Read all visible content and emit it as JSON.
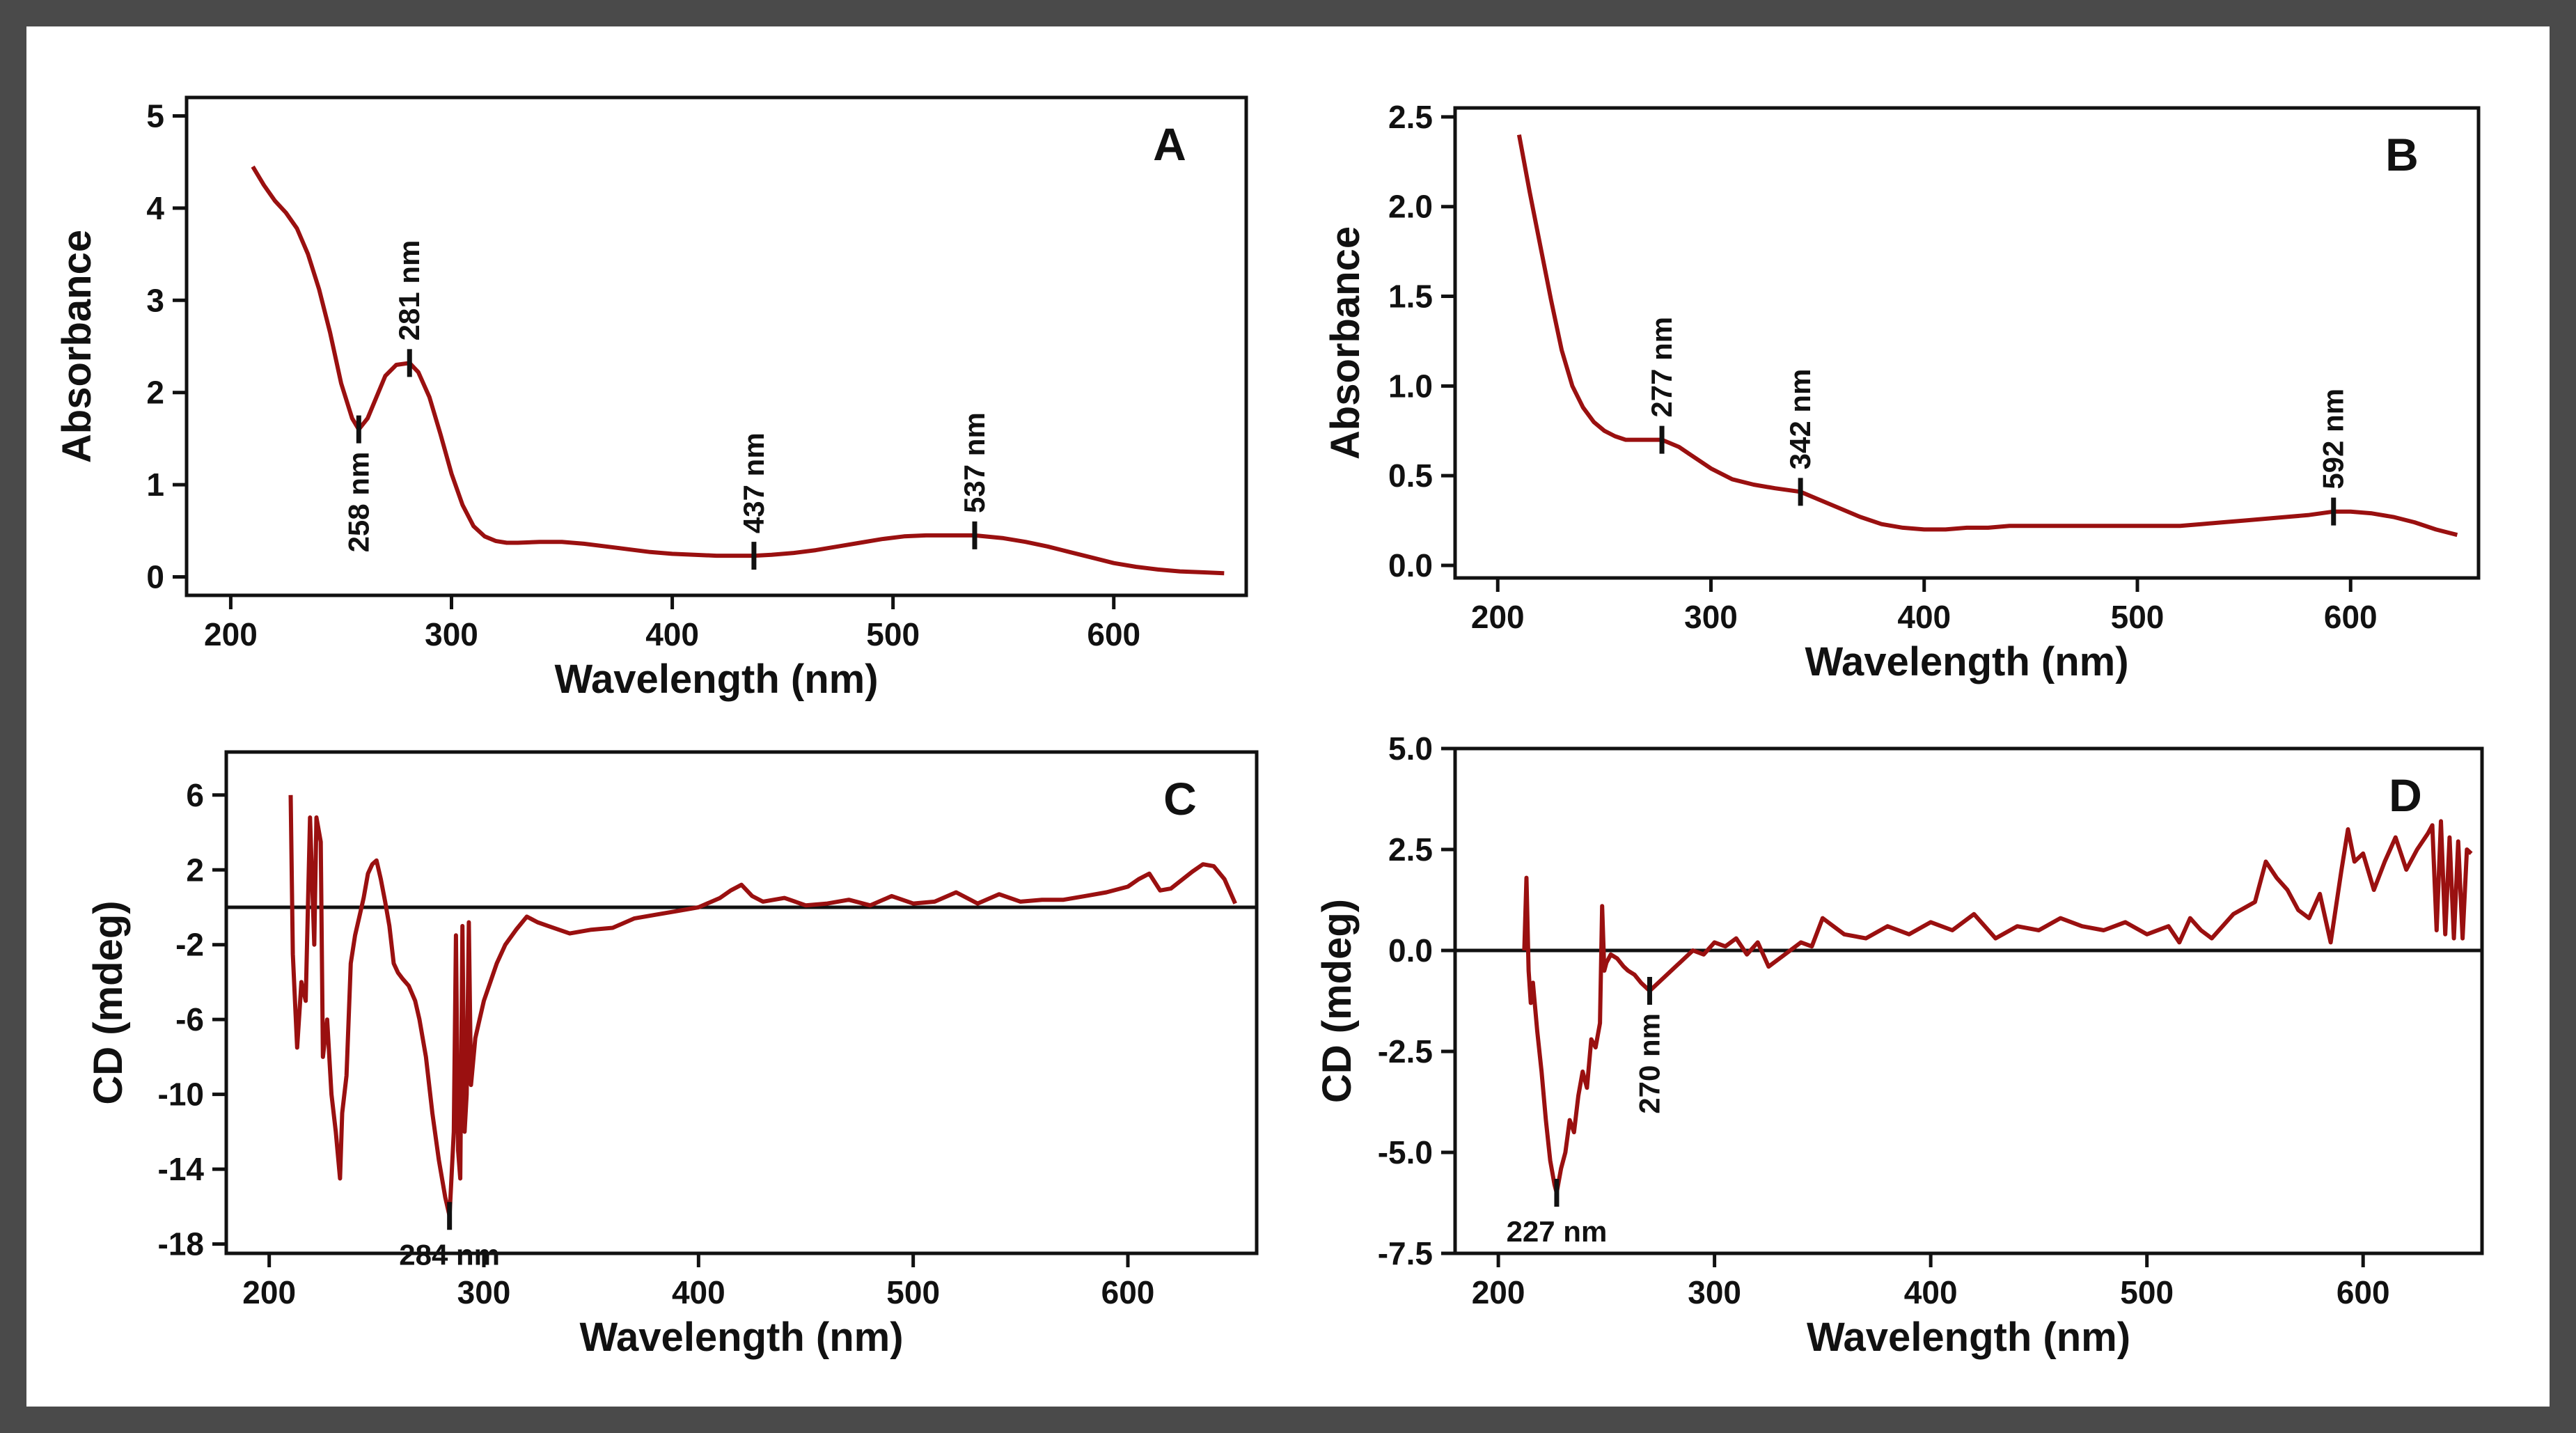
{
  "chart_data": [
    {
      "id": "A",
      "type": "line",
      "letter": "A",
      "xlabel": "Wavelength (nm)",
      "ylabel": "Absorbance",
      "xlim": [
        180,
        660
      ],
      "ylim": [
        -0.2,
        5.2
      ],
      "xticks": [
        200,
        300,
        400,
        500,
        600
      ],
      "xtick_labels": [
        "200",
        "300",
        "400",
        "500",
        "600"
      ],
      "yticks": [
        0,
        1,
        2,
        3,
        4,
        5
      ],
      "ytick_labels": [
        "0",
        "1",
        "2",
        "3",
        "4",
        "5"
      ],
      "zero_line": false,
      "series": [
        {
          "name": "Absorbance",
          "color": "#9a1010",
          "x": [
            210,
            215,
            220,
            225,
            230,
            235,
            240,
            245,
            250,
            255,
            258,
            262,
            266,
            270,
            275,
            281,
            285,
            290,
            295,
            300,
            305,
            310,
            315,
            320,
            325,
            330,
            340,
            350,
            360,
            370,
            380,
            390,
            400,
            410,
            420,
            430,
            437,
            445,
            455,
            465,
            475,
            485,
            495,
            505,
            515,
            525,
            537,
            550,
            560,
            570,
            580,
            590,
            600,
            610,
            620,
            630,
            640,
            650
          ],
          "y": [
            4.45,
            4.25,
            4.08,
            3.95,
            3.78,
            3.5,
            3.12,
            2.65,
            2.1,
            1.72,
            1.6,
            1.72,
            1.95,
            2.18,
            2.3,
            2.32,
            2.22,
            1.95,
            1.55,
            1.12,
            0.78,
            0.55,
            0.44,
            0.39,
            0.37,
            0.37,
            0.38,
            0.38,
            0.36,
            0.33,
            0.3,
            0.27,
            0.25,
            0.24,
            0.23,
            0.23,
            0.23,
            0.24,
            0.26,
            0.29,
            0.33,
            0.37,
            0.41,
            0.44,
            0.45,
            0.45,
            0.45,
            0.42,
            0.38,
            0.33,
            0.27,
            0.21,
            0.15,
            0.11,
            0.08,
            0.06,
            0.05,
            0.04
          ]
        }
      ],
      "annotations": [
        {
          "label": "258 nm",
          "x": 258,
          "y": 1.6,
          "pos": "below"
        },
        {
          "label": "281 nm",
          "x": 281,
          "y": 2.32,
          "pos": "above"
        },
        {
          "label": "437 nm",
          "x": 437,
          "y": 0.23,
          "pos": "above"
        },
        {
          "label": "537 nm",
          "x": 537,
          "y": 0.45,
          "pos": "above"
        }
      ]
    },
    {
      "id": "B",
      "type": "line",
      "letter": "B",
      "xlabel": "Wavelength (nm)",
      "ylabel": "Absorbance",
      "xlim": [
        180,
        660
      ],
      "ylim": [
        -0.07,
        2.55
      ],
      "xticks": [
        200,
        300,
        400,
        500,
        600
      ],
      "xtick_labels": [
        "200",
        "300",
        "400",
        "500",
        "600"
      ],
      "yticks": [
        0,
        0.5,
        1.0,
        1.5,
        2.0,
        2.5
      ],
      "ytick_labels": [
        "0.0",
        "0.5",
        "1.0",
        "1.5",
        "2.0",
        "2.5"
      ],
      "zero_line": false,
      "series": [
        {
          "name": "Absorbance",
          "color": "#9a1010",
          "x": [
            210,
            215,
            220,
            225,
            230,
            235,
            240,
            245,
            250,
            255,
            260,
            265,
            270,
            277,
            285,
            290,
            300,
            310,
            320,
            330,
            342,
            350,
            360,
            370,
            380,
            390,
            400,
            410,
            420,
            430,
            440,
            450,
            460,
            470,
            480,
            490,
            500,
            510,
            520,
            530,
            540,
            550,
            560,
            570,
            580,
            592,
            600,
            610,
            620,
            630,
            640,
            650
          ],
          "y": [
            2.4,
            2.08,
            1.78,
            1.48,
            1.2,
            1.0,
            0.88,
            0.8,
            0.75,
            0.72,
            0.7,
            0.7,
            0.7,
            0.7,
            0.66,
            0.62,
            0.54,
            0.48,
            0.45,
            0.43,
            0.41,
            0.37,
            0.32,
            0.27,
            0.23,
            0.21,
            0.2,
            0.2,
            0.21,
            0.21,
            0.22,
            0.22,
            0.22,
            0.22,
            0.22,
            0.22,
            0.22,
            0.22,
            0.22,
            0.23,
            0.24,
            0.25,
            0.26,
            0.27,
            0.28,
            0.3,
            0.3,
            0.29,
            0.27,
            0.24,
            0.2,
            0.17
          ]
        }
      ],
      "annotations": [
        {
          "label": "277 nm",
          "x": 277,
          "y": 0.7,
          "pos": "above"
        },
        {
          "label": "342 nm",
          "x": 342,
          "y": 0.41,
          "pos": "above"
        },
        {
          "label": "592 nm",
          "x": 592,
          "y": 0.3,
          "pos": "above"
        }
      ]
    },
    {
      "id": "C",
      "type": "line",
      "letter": "C",
      "xlabel": "Wavelength (nm)",
      "ylabel": "CD (mdeg)",
      "xlim": [
        180,
        660
      ],
      "ylim": [
        -18.5,
        8.3
      ],
      "xticks": [
        200,
        300,
        400,
        500,
        600
      ],
      "xtick_labels": [
        "200",
        "300",
        "400",
        "500",
        "600"
      ],
      "yticks": [
        6,
        2,
        -2,
        -6,
        -10,
        -14,
        -18
      ],
      "ytick_labels": [
        "6",
        "2",
        "-2",
        "-6",
        "-10",
        "-14",
        "-18"
      ],
      "zero_line": true,
      "series": [
        {
          "name": "CD",
          "color": "#9a1010",
          "x": [
            210,
            211,
            213,
            215,
            217,
            219,
            221,
            222,
            224,
            225,
            227,
            229,
            231,
            233,
            234,
            236,
            238,
            240,
            242,
            244,
            246,
            248,
            250,
            252,
            254,
            256,
            258,
            260,
            262,
            265,
            268,
            270,
            273,
            276,
            279,
            282,
            284,
            286,
            287,
            288,
            289,
            290,
            291,
            292,
            293,
            294,
            296,
            298,
            300,
            303,
            306,
            310,
            315,
            320,
            325,
            330,
            340,
            350,
            360,
            370,
            380,
            390,
            400,
            410,
            415,
            420,
            425,
            430,
            440,
            450,
            460,
            470,
            480,
            490,
            500,
            510,
            520,
            530,
            540,
            550,
            560,
            570,
            580,
            590,
            600,
            605,
            610,
            615,
            620,
            630,
            635,
            640,
            645,
            650
          ],
          "y": [
            6.0,
            -2.5,
            -7.5,
            -4.0,
            -5.0,
            4.8,
            -2.0,
            4.8,
            3.5,
            -8.0,
            -6.0,
            -10.0,
            -12.0,
            -14.5,
            -11.0,
            -9.0,
            -3.0,
            -1.5,
            -0.5,
            0.5,
            1.8,
            2.3,
            2.5,
            1.5,
            0.3,
            -1.0,
            -3.0,
            -3.5,
            -3.8,
            -4.2,
            -5.0,
            -6.0,
            -8.0,
            -11.0,
            -13.5,
            -15.5,
            -16.5,
            -12.0,
            -1.5,
            -13.0,
            -14.5,
            -1.0,
            -12.0,
            -10.0,
            -0.8,
            -9.5,
            -7.0,
            -6.0,
            -5.0,
            -4.0,
            -3.0,
            -2.0,
            -1.2,
            -0.5,
            -0.8,
            -1.0,
            -1.4,
            -1.2,
            -1.1,
            -0.6,
            -0.4,
            -0.2,
            0.0,
            0.5,
            0.9,
            1.2,
            0.6,
            0.3,
            0.5,
            0.1,
            0.2,
            0.4,
            0.1,
            0.6,
            0.2,
            0.3,
            0.8,
            0.2,
            0.7,
            0.3,
            0.4,
            0.4,
            0.6,
            0.8,
            1.1,
            1.5,
            1.8,
            0.9,
            1.0,
            1.9,
            2.3,
            2.2,
            1.5,
            0.2
          ]
        }
      ],
      "annotations": [
        {
          "label": "284 nm",
          "x": 284,
          "y": -16.5,
          "pos": "below"
        }
      ]
    },
    {
      "id": "D",
      "type": "line",
      "letter": "D",
      "xlabel": "Wavelength (nm)",
      "ylabel": "CD (mdeg)",
      "xlim": [
        180,
        655
      ],
      "ylim": [
        -7.5,
        5.0
      ],
      "xticks": [
        200,
        300,
        400,
        500,
        600
      ],
      "xtick_labels": [
        "200",
        "300",
        "400",
        "500",
        "600"
      ],
      "yticks": [
        5.0,
        2.5,
        0.0,
        -2.5,
        -5.0,
        -7.5
      ],
      "ytick_labels": [
        "5.0",
        "2.5",
        "0.0",
        "-2.5",
        "-5.0",
        "-7.5"
      ],
      "zero_line": true,
      "series": [
        {
          "name": "CD",
          "color": "#9a1010",
          "x": [
            212,
            213,
            214,
            215,
            216,
            218,
            220,
            222,
            224,
            226,
            227,
            229,
            231,
            233,
            235,
            237,
            239,
            241,
            243,
            245,
            247,
            248,
            249,
            250,
            252,
            255,
            258,
            260,
            263,
            266,
            270,
            274,
            278,
            282,
            286,
            290,
            295,
            300,
            305,
            310,
            315,
            320,
            325,
            330,
            335,
            340,
            345,
            350,
            360,
            370,
            380,
            390,
            400,
            410,
            420,
            430,
            440,
            450,
            460,
            470,
            480,
            490,
            500,
            510,
            515,
            520,
            525,
            530,
            540,
            550,
            555,
            560,
            565,
            570,
            575,
            580,
            585,
            590,
            593,
            596,
            600,
            605,
            610,
            615,
            620,
            625,
            630,
            632,
            634,
            636,
            638,
            640,
            642,
            644,
            646,
            648,
            650
          ],
          "y": [
            0.0,
            1.8,
            -0.5,
            -1.3,
            -0.8,
            -2.0,
            -3.0,
            -4.2,
            -5.2,
            -5.8,
            -6.0,
            -5.4,
            -5.0,
            -4.2,
            -4.5,
            -3.6,
            -3.0,
            -3.4,
            -2.2,
            -2.4,
            -1.8,
            1.1,
            -0.5,
            -0.3,
            -0.1,
            -0.2,
            -0.4,
            -0.5,
            -0.6,
            -0.8,
            -1.0,
            -0.8,
            -0.6,
            -0.4,
            -0.2,
            0.0,
            -0.1,
            0.2,
            0.1,
            0.3,
            -0.1,
            0.2,
            -0.4,
            -0.2,
            0.0,
            0.2,
            0.1,
            0.8,
            0.4,
            0.3,
            0.6,
            0.4,
            0.7,
            0.5,
            0.9,
            0.3,
            0.6,
            0.5,
            0.8,
            0.6,
            0.5,
            0.7,
            0.4,
            0.6,
            0.2,
            0.8,
            0.5,
            0.3,
            0.9,
            1.2,
            2.2,
            1.8,
            1.5,
            1.0,
            0.8,
            1.4,
            0.2,
            2.0,
            3.0,
            2.2,
            2.4,
            1.5,
            2.2,
            2.8,
            2.0,
            2.5,
            2.9,
            3.1,
            0.5,
            3.2,
            0.4,
            2.8,
            0.3,
            2.7,
            0.3,
            2.5,
            2.4
          ]
        }
      ],
      "annotations": [
        {
          "label": "227 nm",
          "x": 227,
          "y": -6.0,
          "pos": "below"
        },
        {
          "label": "270 nm",
          "x": 270,
          "y": -1.0,
          "pos": "below"
        }
      ]
    }
  ]
}
